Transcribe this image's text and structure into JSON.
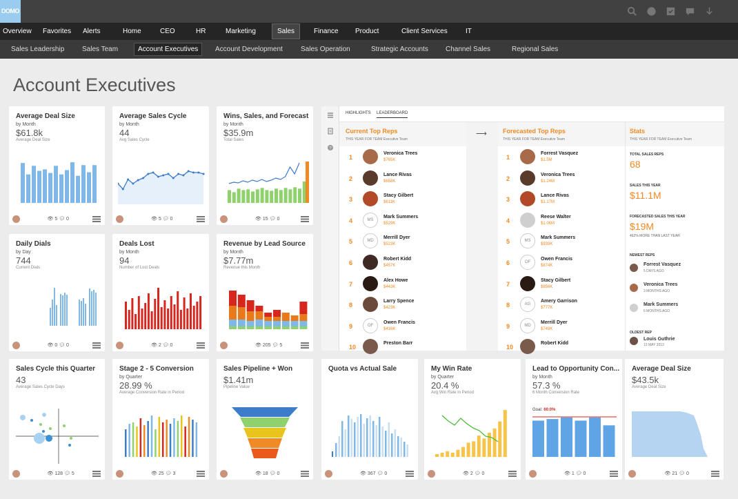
{
  "app": {
    "logo": "DOMO"
  },
  "main_nav": [
    "Overview",
    "Favorites",
    "Alerts",
    "Home",
    "CEO",
    "HR",
    "Marketing",
    "Sales",
    "Finance",
    "Product",
    "Client Services",
    "IT"
  ],
  "main_nav_active": "Sales",
  "sub_nav": [
    "Sales Leadership",
    "Sales Team",
    "Account Executives",
    "Account Development",
    "Sales Operation",
    "Strategic Accounts",
    "Channel Sales",
    "Regional Sales"
  ],
  "sub_nav_active": "Account Executives",
  "page_title": "Account Executives",
  "cards": [
    {
      "title": "Average Deal Size",
      "period": "by Month",
      "value": "$61.8k",
      "label": "Average Deal Size",
      "views": "5",
      "comments": "0"
    },
    {
      "title": "Average Sales Cycle",
      "period": "by Month",
      "value": "44",
      "label": "Avg Sales Cycle",
      "views": "5",
      "comments": "0"
    },
    {
      "title": "Wins, Sales, and Forecast",
      "period": "by Month",
      "value": "$35.9m",
      "label": "Total Sales",
      "views": "15",
      "comments": "0"
    },
    {
      "title": "Daily Dials",
      "period": "by Day",
      "value": "744",
      "label": "Current Dials",
      "views": "0",
      "comments": "0"
    },
    {
      "title": "Deals Lost",
      "period": "by Month",
      "value": "94",
      "label": "Number of Lost Deals",
      "views": "2",
      "comments": "0"
    },
    {
      "title": "Revenue by Lead Source",
      "period": "by Month",
      "value": "$7.77m",
      "label": "Revenue this Month",
      "views": "205",
      "comments": "5"
    },
    {
      "title": "Sales Cycle this Quarter",
      "period": "",
      "value": "43",
      "label": "Average Sales Cycle Days",
      "views": "128",
      "comments": "5"
    },
    {
      "title": "Stage 2 - 5 Conversion",
      "period": "by Quarter",
      "value": "28.99 %",
      "label": "Average Conversion Rate in Period",
      "views": "25",
      "comments": "3"
    },
    {
      "title": "Sales Pipeline + Won",
      "period": "",
      "value": "$1.41m",
      "label": "Pipeline Value",
      "views": "18",
      "comments": "0"
    },
    {
      "title": "Quota vs Actual Sale",
      "period": "",
      "value": "",
      "label": "",
      "views": "367",
      "comments": "0"
    },
    {
      "title": "My Win Rate",
      "period": "by Quarter",
      "value": "20.4 %",
      "label": "Avg Win Rate in Period",
      "views": "2",
      "comments": "0"
    },
    {
      "title": "Lead to Opportunity Con...",
      "period": "by Month",
      "value": "57.3 %",
      "label": "6 Month Conversion Rate",
      "views": "1",
      "comments": "0",
      "goal_label": "Goal:",
      "goal_value": "60.0%"
    },
    {
      "title": "Average Deal Size",
      "period": "",
      "value": "$43.5k",
      "label": "Average Deal Size",
      "views": "21",
      "comments": "0"
    }
  ],
  "leaderboard": {
    "tabs": [
      "HIGHLIGHTS",
      "LEADERBOARD"
    ],
    "current": {
      "title": "Current Top Reps",
      "subtitle": "THIS YEAR FOR TEAM Executive Team",
      "reps": [
        {
          "n": "1",
          "name": "Veronica Trees",
          "value": "$765K",
          "initials": ""
        },
        {
          "n": "2",
          "name": "Lance Rivas",
          "value": "$658K",
          "initials": ""
        },
        {
          "n": "3",
          "name": "Stacy Gilbert",
          "value": "$611K",
          "initials": ""
        },
        {
          "n": "4",
          "name": "Mark Summers",
          "value": "$529K",
          "initials": "MS"
        },
        {
          "n": "5",
          "name": "Merrill Dyer",
          "value": "$523K",
          "initials": "MD"
        },
        {
          "n": "6",
          "name": "Robert Kidd",
          "value": "$457K",
          "initials": ""
        },
        {
          "n": "7",
          "name": "Alex Howe",
          "value": "$443K",
          "initials": ""
        },
        {
          "n": "8",
          "name": "Larry Spence",
          "value": "$423K",
          "initials": ""
        },
        {
          "n": "9",
          "name": "Owen Francis",
          "value": "$416K",
          "initials": "OF"
        },
        {
          "n": "10",
          "name": "Preston Barr",
          "value": "",
          "initials": ""
        }
      ]
    },
    "forecast": {
      "title": "Forecasted Top Reps",
      "subtitle": "THIS YEAR FOR TEAM Executive Team",
      "reps": [
        {
          "n": "1",
          "name": "Forrest Vasquez",
          "value": "$1.5M",
          "initials": ""
        },
        {
          "n": "2",
          "name": "Veronica Trees",
          "value": "$1.24M",
          "initials": ""
        },
        {
          "n": "3",
          "name": "Lance Rivas",
          "value": "$1.17M",
          "initials": ""
        },
        {
          "n": "4",
          "name": "Reese Walter",
          "value": "$1.06M",
          "initials": ""
        },
        {
          "n": "5",
          "name": "Mark Summers",
          "value": "$939K",
          "initials": "MS"
        },
        {
          "n": "6",
          "name": "Owen Francis",
          "value": "$874K",
          "initials": "OF"
        },
        {
          "n": "7",
          "name": "Stacy Gilbert",
          "value": "$856K",
          "initials": ""
        },
        {
          "n": "8",
          "name": "Amery Garrison",
          "value": "$777K",
          "initials": "AG"
        },
        {
          "n": "9",
          "name": "Merrill Dyer",
          "value": "$749K",
          "initials": "MD"
        },
        {
          "n": "10",
          "name": "Robert Kidd",
          "value": "",
          "initials": ""
        }
      ]
    },
    "stats": {
      "title": "Stats",
      "subtitle": "THIS YEAR FOR TEAM Executive Team",
      "total_reps_label": "TOTAL SALES REPS",
      "total_reps": "68",
      "sales_label": "SALES THIS YEAR",
      "sales": "$11.1M",
      "forecast_label": "FORECASTED SALES THIS YEAR",
      "forecast": "$19M",
      "forecast_note": "462% MORE THAN LAST YEAR",
      "newest_label": "NEWEST REPS",
      "newest": [
        {
          "name": "Forrest Vasquez",
          "ago": "5 DAYS AGO"
        },
        {
          "name": "Veronica Trees",
          "ago": "3 MONTHS AGO"
        },
        {
          "name": "Mark Summers",
          "ago": "6 MONTHS AGO"
        }
      ],
      "oldest_label": "OLDEST REP",
      "oldest": {
        "name": "Louis Guthrie",
        "ago": "13 MAY 2013"
      }
    }
  },
  "colors": {
    "blue": "#7fb8e6",
    "orange": "#f08a24",
    "green": "#8ed16d",
    "red": "#d7261e",
    "domo_blue": "#99ccee"
  }
}
